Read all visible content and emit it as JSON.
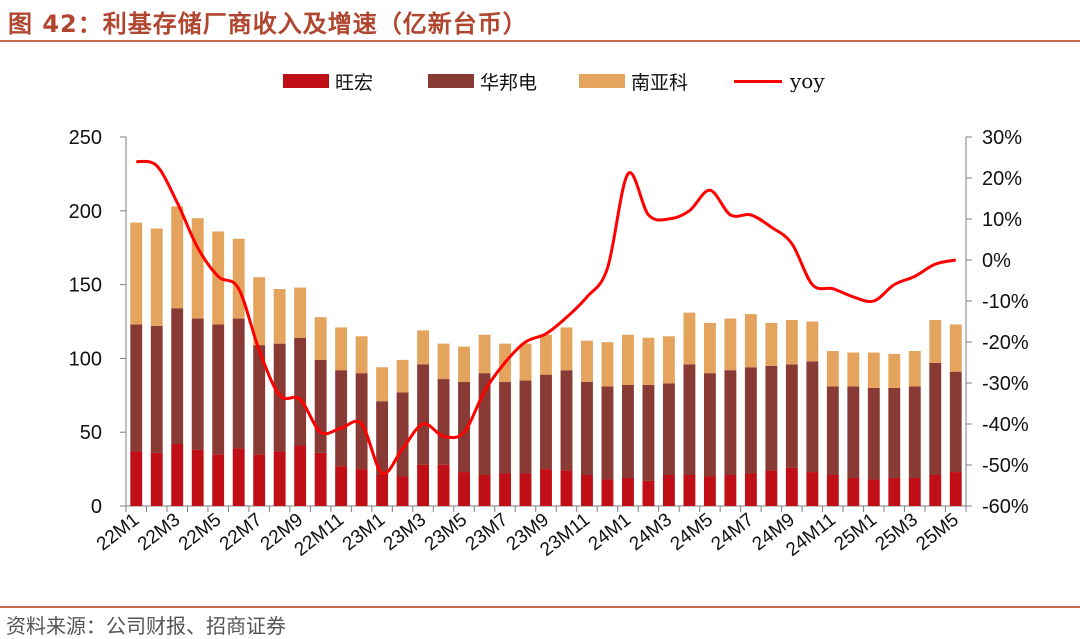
{
  "header": {
    "title": "图 42：利基存储厂商收入及增速（亿新台币）"
  },
  "footer": {
    "source": "资料来源：公司财报、招商证券"
  },
  "colors": {
    "accent": "#b0462f",
    "rule": "#c86a4a",
    "wanghong": "#c00f16",
    "huabang": "#8a3a34",
    "nanya": "#e4a45e",
    "yoy": "#ff0000"
  },
  "chart_data": {
    "type": "bar",
    "stacked": true,
    "title": "",
    "x": [
      "22M1",
      "22M2",
      "22M3",
      "22M4",
      "22M5",
      "22M6",
      "22M7",
      "22M8",
      "22M9",
      "22M10",
      "22M11",
      "22M12",
      "23M1",
      "23M2",
      "23M3",
      "23M4",
      "23M5",
      "23M6",
      "23M7",
      "23M8",
      "23M9",
      "23M10",
      "23M11",
      "23M12",
      "24M1",
      "24M2",
      "24M3",
      "24M4",
      "24M5",
      "24M6",
      "24M7",
      "24M8",
      "24M9",
      "24M10",
      "24M11",
      "24M12",
      "25M1",
      "25M2",
      "25M3",
      "25M4",
      "25M5"
    ],
    "x_tick_labels": [
      "22M1",
      "22M3",
      "22M5",
      "22M7",
      "22M9",
      "22M11",
      "23M1",
      "23M3",
      "23M5",
      "23M7",
      "23M9",
      "23M11",
      "24M1",
      "24M3",
      "24M5",
      "24M7",
      "24M9",
      "24M11",
      "25M1",
      "25M3",
      "25M5"
    ],
    "series": [
      {
        "name": "旺宏",
        "axis": "left",
        "values": [
          37,
          36,
          42,
          38,
          35,
          39,
          35,
          37,
          41,
          36,
          27,
          25,
          21,
          20,
          28,
          28,
          23,
          21,
          22,
          22,
          25,
          24,
          21,
          18,
          19,
          17,
          21,
          21,
          20,
          21,
          22,
          24,
          26,
          23,
          21,
          19,
          18,
          19,
          19,
          21,
          23
        ]
      },
      {
        "name": "华邦电",
        "axis": "left",
        "values": [
          86,
          86,
          92,
          89,
          88,
          88,
          74,
          73,
          73,
          63,
          65,
          65,
          50,
          57,
          68,
          58,
          61,
          69,
          62,
          63,
          64,
          68,
          63,
          63,
          63,
          65,
          62,
          75,
          70,
          71,
          72,
          71,
          70,
          75,
          60,
          62,
          62,
          61,
          62,
          76,
          68
        ]
      },
      {
        "name": "南亚科",
        "axis": "left",
        "values": [
          69,
          66,
          69,
          68,
          63,
          54,
          46,
          37,
          34,
          29,
          29,
          25,
          23,
          22,
          23,
          24,
          24,
          26,
          26,
          25,
          27,
          29,
          28,
          30,
          34,
          32,
          32,
          35,
          34,
          35,
          36,
          29,
          30,
          27,
          24,
          23,
          24,
          23,
          24,
          29,
          32
        ]
      },
      {
        "name": "yoy",
        "type": "line",
        "axis": "right",
        "values": [
          0.24,
          0.23,
          0.14,
          0.03,
          -0.04,
          -0.07,
          -0.22,
          -0.33,
          -0.34,
          -0.42,
          -0.41,
          -0.4,
          -0.52,
          -0.46,
          -0.4,
          -0.43,
          -0.42,
          -0.32,
          -0.25,
          -0.2,
          -0.18,
          -0.14,
          -0.09,
          -0.02,
          0.21,
          0.11,
          0.1,
          0.12,
          0.17,
          0.11,
          0.11,
          0.08,
          0.04,
          -0.06,
          -0.07,
          -0.09,
          -0.1,
          -0.06,
          -0.04,
          -0.01,
          0.0
        ]
      }
    ],
    "left_axis": {
      "ylim": [
        0,
        250
      ],
      "ticks": [
        "0",
        "50",
        "100",
        "150",
        "200",
        "250"
      ]
    },
    "right_axis": {
      "ylim": [
        -0.6,
        0.3
      ],
      "ticks": [
        "-60%",
        "-50%",
        "-40%",
        "-30%",
        "-20%",
        "-10%",
        "0%",
        "10%",
        "20%",
        "30%"
      ]
    },
    "legend": {
      "position": "top-center",
      "entries": [
        "旺宏",
        "华邦电",
        "南亚科",
        "yoy"
      ]
    },
    "grid": false
  }
}
